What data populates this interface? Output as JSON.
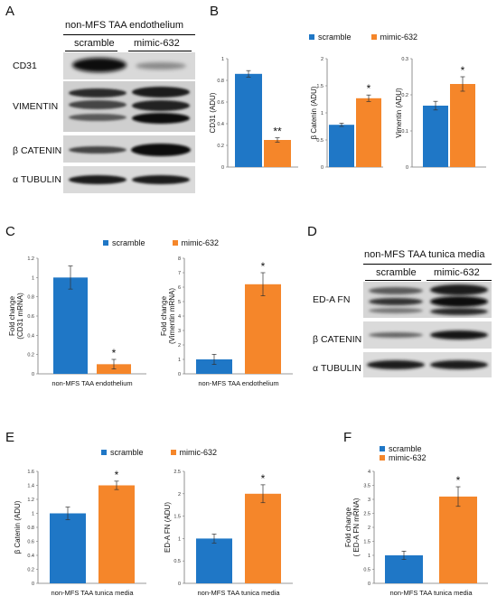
{
  "colors": {
    "scramble": "#1f77c6",
    "mimic": "#f5862a"
  },
  "panels": {
    "A": {
      "letter": "A",
      "title": "non-MFS TAA endothelium",
      "lanes": [
        "scramble",
        "mimic-632"
      ],
      "bands": [
        "CD31",
        "VIMENTIN",
        "β CATENIN",
        "α TUBULIN"
      ]
    },
    "B": {
      "letter": "B"
    },
    "C": {
      "letter": "C"
    },
    "D": {
      "letter": "D",
      "title": "non-MFS TAA tunica media",
      "lanes": [
        "scramble",
        "mimic-632"
      ],
      "bands": [
        "ED-A FN",
        "β CATENIN",
        "α TUBULIN"
      ]
    },
    "E": {
      "letter": "E"
    },
    "F": {
      "letter": "F"
    }
  },
  "legends": {
    "B": {
      "scramble": "scramble",
      "mimic": "mimic-632"
    },
    "C": {
      "scramble": "scramble",
      "mimic": "mimic-632"
    },
    "E": {
      "scramble": "scramble",
      "mimic": "mimic-632"
    },
    "F": {
      "scramble": "scramble",
      "mimic": "mimic-632"
    }
  },
  "chart_data": [
    {
      "id": "B1",
      "type": "bar",
      "ylabel": "CD31 (ADU)",
      "xlabel": "",
      "ylim": [
        0,
        1
      ],
      "ticks": [
        0,
        0.2,
        0.4,
        0.6,
        0.8,
        1
      ],
      "tick_labels": [
        "0",
        "0.2",
        "0.4",
        "0.6",
        "0.8",
        "1"
      ],
      "series": [
        {
          "name": "scramble",
          "value": 0.86,
          "error": 0.03
        },
        {
          "name": "mimic-632",
          "value": 0.25,
          "error": 0.02
        }
      ],
      "annotation": "**"
    },
    {
      "id": "B2",
      "type": "bar",
      "ylabel": "β Catenin (ADU)",
      "xlabel": "",
      "ylim": [
        0,
        2
      ],
      "ticks": [
        0,
        0.5,
        1,
        1.5,
        2
      ],
      "tick_labels": [
        "0",
        "0.5",
        "1",
        "1.5",
        "2"
      ],
      "series": [
        {
          "name": "scramble",
          "value": 0.78,
          "error": 0.03
        },
        {
          "name": "mimic-632",
          "value": 1.27,
          "error": 0.06
        }
      ],
      "annotation": "*"
    },
    {
      "id": "B3",
      "type": "bar",
      "ylabel": "Vimentin (ADU)",
      "xlabel": "",
      "ylim": [
        0,
        0.3
      ],
      "ticks": [
        0,
        0.1,
        0.2,
        0.3
      ],
      "tick_labels": [
        "0",
        "0.1",
        "0.2",
        "0.3"
      ],
      "series": [
        {
          "name": "scramble",
          "value": 0.17,
          "error": 0.012
        },
        {
          "name": "mimic-632",
          "value": 0.23,
          "error": 0.02
        }
      ],
      "annotation": "*"
    },
    {
      "id": "C1",
      "type": "bar",
      "ylabel": "Fold change (CD31 mRNA)",
      "xlabel": "non-MFS TAA endothelium",
      "ylim": [
        0,
        1.2
      ],
      "ticks": [
        0,
        0.2,
        0.4,
        0.6,
        0.8,
        1,
        1.2
      ],
      "tick_labels": [
        "0",
        "0.2",
        "0.4",
        "0.6",
        "0.8",
        "1",
        "1.2"
      ],
      "series": [
        {
          "name": "scramble",
          "value": 1.0,
          "error": 0.12
        },
        {
          "name": "mimic-632",
          "value": 0.1,
          "error": 0.05
        }
      ],
      "annotation": "*"
    },
    {
      "id": "C2",
      "type": "bar",
      "ylabel": "Fold change (Vimentin mRNA)",
      "xlabel": "non-MFS TAA endothelium",
      "ylim": [
        0,
        8
      ],
      "ticks": [
        0,
        1,
        2,
        3,
        4,
        5,
        6,
        7,
        8
      ],
      "tick_labels": [
        "0",
        "1",
        "2",
        "3",
        "4",
        "5",
        "6",
        "7",
        "8"
      ],
      "series": [
        {
          "name": "scramble",
          "value": 1.0,
          "error": 0.35
        },
        {
          "name": "mimic-632",
          "value": 6.2,
          "error": 0.8
        }
      ],
      "annotation": "*"
    },
    {
      "id": "E1",
      "type": "bar",
      "ylabel": "β Catenin (ADU)",
      "xlabel": "non-MFS TAA tunica media",
      "ylim": [
        0,
        1.6
      ],
      "ticks": [
        0,
        0.2,
        0.4,
        0.6,
        0.8,
        1,
        1.2,
        1.4,
        1.6
      ],
      "tick_labels": [
        "0",
        "0.2",
        "0.4",
        "0.6",
        "0.8",
        "1",
        "1.2",
        "1.4",
        "1.6"
      ],
      "series": [
        {
          "name": "scramble",
          "value": 1.0,
          "error": 0.09
        },
        {
          "name": "mimic-632",
          "value": 1.4,
          "error": 0.06
        }
      ],
      "annotation": "*"
    },
    {
      "id": "E2",
      "type": "bar",
      "ylabel": "ED-A FN (ADU)",
      "xlabel": "non-MFS TAA tunica media",
      "ylim": [
        0,
        2.5
      ],
      "ticks": [
        0,
        0.5,
        1,
        1.5,
        2,
        2.5
      ],
      "tick_labels": [
        "0",
        "0.5",
        "1",
        "1.5",
        "2",
        "2.5"
      ],
      "series": [
        {
          "name": "scramble",
          "value": 1.0,
          "error": 0.1
        },
        {
          "name": "mimic-632",
          "value": 2.0,
          "error": 0.2
        }
      ],
      "annotation": "*"
    },
    {
      "id": "F1",
      "type": "bar",
      "ylabel": "Fold change ( ED-A FN mRNA)",
      "xlabel": "non-MFS TAA tunica media",
      "ylim": [
        0,
        4
      ],
      "ticks": [
        0,
        0.5,
        1,
        1.5,
        2,
        2.5,
        3,
        3.5,
        4
      ],
      "tick_labels": [
        "0",
        "0.5",
        "1",
        "1.5",
        "2",
        "2.5",
        "3",
        "3.5",
        "4"
      ],
      "series": [
        {
          "name": "scramble",
          "value": 1.0,
          "error": 0.15
        },
        {
          "name": "mimic-632",
          "value": 3.1,
          "error": 0.35
        }
      ],
      "annotation": "*"
    }
  ]
}
